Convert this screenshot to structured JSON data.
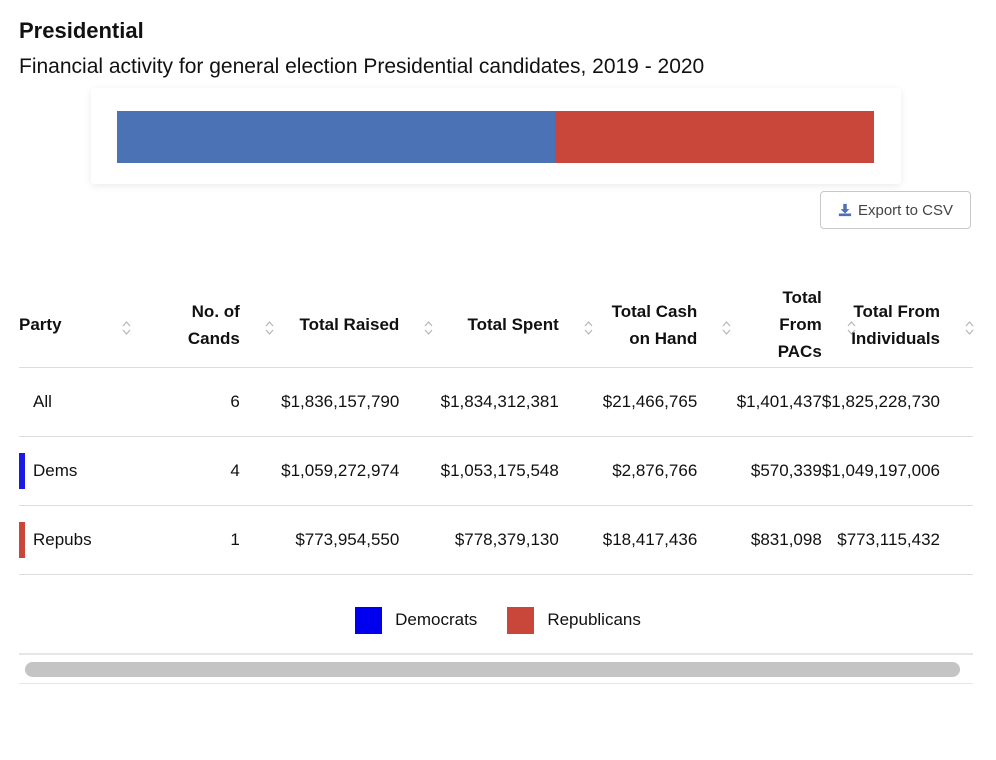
{
  "title": "Presidential",
  "subtitle": "Financial activity for general election Presidential candidates, 2019 - 2020",
  "colors": {
    "democrats_bar": "#4a72b5",
    "republicans_bar": "#c9463b",
    "democrats_legend": "#0000ee",
    "republicans_legend": "#c9463b",
    "dems_marker": "#1a1ae6",
    "repubs_marker": "#c9463b"
  },
  "share_bar": {
    "democrats_fraction": 0.578,
    "republicans_fraction": 0.422
  },
  "export_button": {
    "label": "Export to CSV",
    "icon": "download-icon"
  },
  "table": {
    "columns": [
      {
        "label": "Party",
        "lines": [
          "Party"
        ]
      },
      {
        "label": "No. of Cands",
        "lines": [
          "No. of",
          "Cands"
        ]
      },
      {
        "label": "Total Raised",
        "lines": [
          "Total Raised"
        ]
      },
      {
        "label": "Total Spent",
        "lines": [
          "Total Spent"
        ]
      },
      {
        "label": "Total Cash on Hand",
        "lines": [
          "Total Cash",
          "on Hand"
        ]
      },
      {
        "label": "Total From PACs",
        "lines": [
          "Total",
          "From",
          "PACs"
        ]
      },
      {
        "label": "Total From Individuals",
        "lines": [
          "Total From",
          "Individuals"
        ]
      }
    ],
    "rows": [
      {
        "party": "All",
        "cands": "6",
        "raised": "$1,836,157,790",
        "spent": "$1,834,312,381",
        "cash": "$21,466,765",
        "pacs": "$1,401,437",
        "individuals": "$1,825,228,730"
      },
      {
        "party": "Dems",
        "cands": "4",
        "raised": "$1,059,272,974",
        "spent": "$1,053,175,548",
        "cash": "$2,876,766",
        "pacs": "$570,339",
        "individuals": "$1,049,197,006"
      },
      {
        "party": "Repubs",
        "cands": "1",
        "raised": "$773,954,550",
        "spent": "$778,379,130",
        "cash": "$18,417,436",
        "pacs": "$831,098",
        "individuals": "$773,115,432"
      }
    ]
  },
  "legend": {
    "democrats": "Democrats",
    "republicans": "Republicans"
  }
}
